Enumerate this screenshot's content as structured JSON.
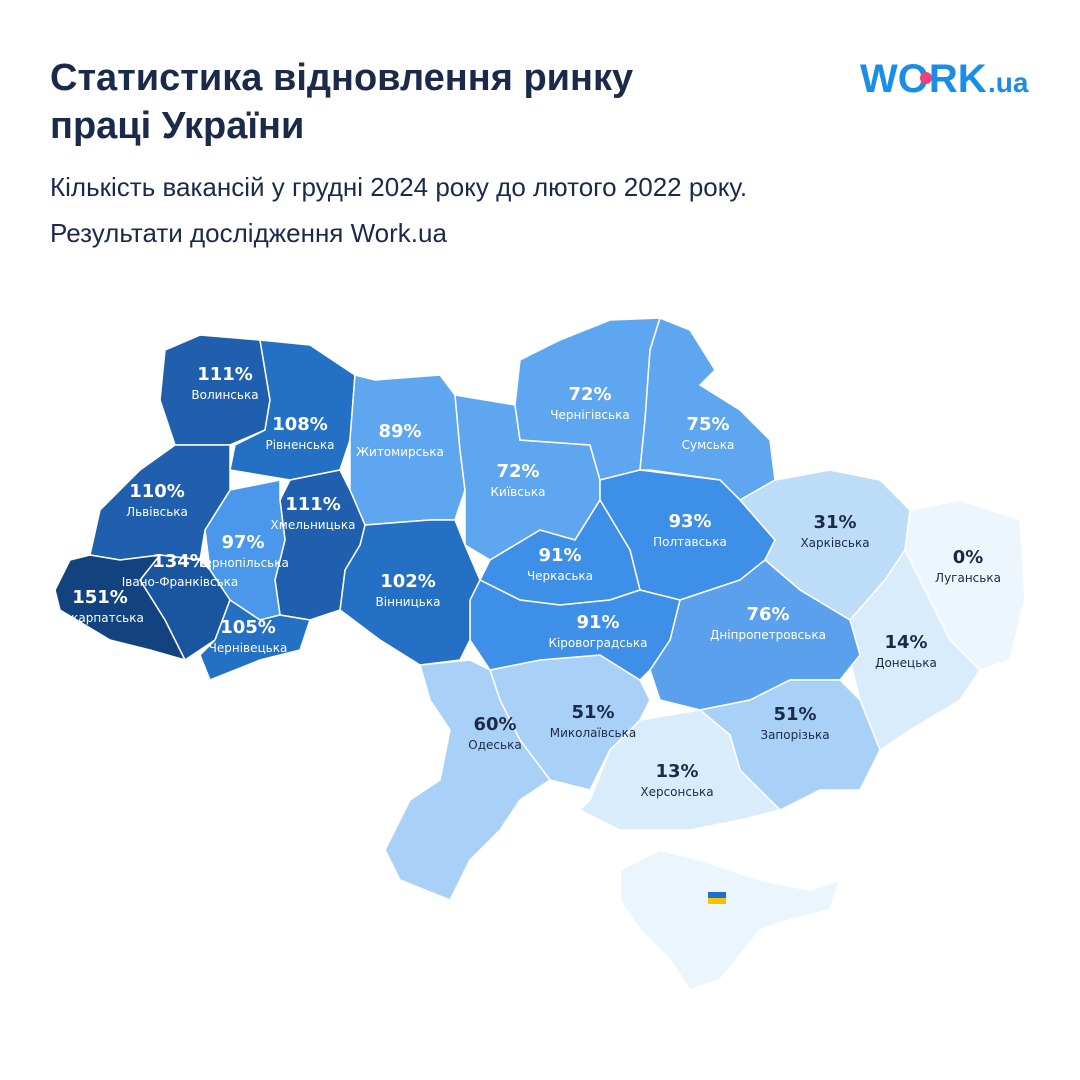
{
  "header": {
    "title_lines": [
      "Статистика відновлення ринку",
      "праці України"
    ],
    "subtitle_lines": [
      "Кількість вакансій у грудні 2024 року до лютого 2022 року.",
      "Результати дослідження Work.ua"
    ],
    "logo": {
      "main": "WORK",
      "suffix": ".ua"
    }
  },
  "regions": [
    {
      "name": "Волинська",
      "value": 111,
      "value_label": "111%",
      "color": "#1f5fae",
      "text_color": "#ffffff"
    },
    {
      "name": "Рівненська",
      "value": 108,
      "value_label": "108%",
      "color": "#2470c4",
      "text_color": "#ffffff"
    },
    {
      "name": "Житомирська",
      "value": 89,
      "value_label": "89%",
      "color": "#5fa6f0",
      "text_color": "#ffffff"
    },
    {
      "name": "Київська",
      "value": 72,
      "value_label": "72%",
      "color": "#5fa6f0",
      "text_color": "#ffffff"
    },
    {
      "name": "Чернігівська",
      "value": 72,
      "value_label": "72%",
      "color": "#5fa6f0",
      "text_color": "#ffffff"
    },
    {
      "name": "Сумська",
      "value": 75,
      "value_label": "75%",
      "color": "#5fa6f0",
      "text_color": "#ffffff"
    },
    {
      "name": "Полтавська",
      "value": 93,
      "value_label": "93%",
      "color": "#3e8fe8",
      "text_color": "#ffffff"
    },
    {
      "name": "Харківська",
      "value": 31,
      "value_label": "31%",
      "color": "#bcdcf8",
      "text_color": "#1c2a4a"
    },
    {
      "name": "Луганська",
      "value": 0,
      "value_label": "0%",
      "color": "#eef6fd",
      "text_color": "#1c2a4a"
    },
    {
      "name": "Донецька",
      "value": 14,
      "value_label": "14%",
      "color": "#d9ecfb",
      "text_color": "#1c2a4a"
    },
    {
      "name": "Дніпропетровська",
      "value": 76,
      "value_label": "76%",
      "color": "#5aa0ec",
      "text_color": "#ffffff"
    },
    {
      "name": "Запорізька",
      "value": 51,
      "value_label": "51%",
      "color": "#a9d1f7",
      "text_color": "#1c2a4a"
    },
    {
      "name": "Херсонська",
      "value": 13,
      "value_label": "13%",
      "color": "#d9ecfb",
      "text_color": "#1c2a4a"
    },
    {
      "name": "Миколаївська",
      "value": 51,
      "value_label": "51%",
      "color": "#a9d1f7",
      "text_color": "#1c2a4a"
    },
    {
      "name": "Одеська",
      "value": 60,
      "value_label": "60%",
      "color": "#a9d1f7",
      "text_color": "#1c2a4a"
    },
    {
      "name": "Черкаська",
      "value": 91,
      "value_label": "91%",
      "color": "#3e8fe8",
      "text_color": "#ffffff"
    },
    {
      "name": "Кіровоградська",
      "value": 91,
      "value_label": "91%",
      "color": "#3e8fe8",
      "text_color": "#ffffff"
    },
    {
      "name": "Вінницька",
      "value": 102,
      "value_label": "102%",
      "color": "#2470c4",
      "text_color": "#ffffff"
    },
    {
      "name": "Хмельницька",
      "value": 111,
      "value_label": "111%",
      "color": "#1f5fae",
      "text_color": "#ffffff"
    },
    {
      "name": "Тернопільська",
      "value": 97,
      "value_label": "97%",
      "color": "#4a97ec",
      "text_color": "#ffffff"
    },
    {
      "name": "Львівська",
      "value": 110,
      "value_label": "110%",
      "color": "#1f5fae",
      "text_color": "#ffffff"
    },
    {
      "name": "Івано-Франківська",
      "value": 134,
      "value_label": "134%",
      "color": "#1a55a0",
      "text_color": "#ffffff"
    },
    {
      "name": "Чернівецька",
      "value": 105,
      "value_label": "105%",
      "color": "#2470c4",
      "text_color": "#ffffff"
    },
    {
      "name": "Закарпатська",
      "value": 151,
      "value_label": "151%",
      "color": "#12437f",
      "text_color": "#ffffff"
    }
  ]
}
